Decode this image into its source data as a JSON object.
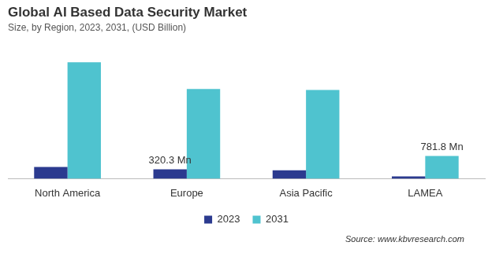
{
  "chart_data": {
    "type": "bar",
    "title": "Global AI Based Data Security Market",
    "subtitle": "Size, by Region, 2023, 2031, (USD Billion)",
    "source": "Source: www.kbvresearch.com",
    "categories": [
      "North America",
      "Europe",
      "Asia Pacific",
      "LAMEA"
    ],
    "series": [
      {
        "name": "2023",
        "color": "#2b3a8f",
        "values": [
          400,
          320.3,
          290,
          80
        ],
        "value_labels": [
          null,
          "320.3 Mn",
          null,
          null
        ]
      },
      {
        "name": "2031",
        "color": "#4fc3cf",
        "values": [
          4000,
          3080,
          3050,
          781.8
        ],
        "value_labels": [
          null,
          null,
          null,
          "781.8 Mn"
        ]
      }
    ],
    "legend": "bottom",
    "grid": false,
    "tick_labels": "x",
    "data_labels": true
  }
}
